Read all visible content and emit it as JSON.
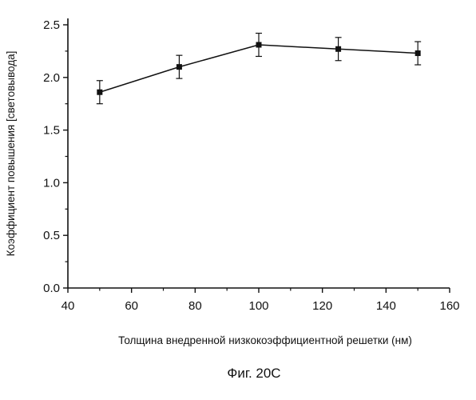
{
  "chart_data": {
    "type": "line",
    "title": "",
    "xlabel": "Толщина внедренной низкокоэффициентной решетки (нм)",
    "ylabel": "Коэффициент повышения [световывода]",
    "xlim": [
      40,
      160
    ],
    "ylim": [
      0.0,
      2.5
    ],
    "xticks": [
      "40",
      "60",
      "80",
      "100",
      "120",
      "140",
      "160"
    ],
    "yticks": [
      "0.0",
      "0.5",
      "1.0",
      "1.5",
      "2.0",
      "2.5"
    ],
    "grid": false,
    "marker": "square",
    "series": [
      {
        "x": [
          50,
          75,
          100,
          125,
          150
        ],
        "y": [
          1.86,
          2.1,
          2.31,
          2.27,
          2.23
        ],
        "error": [
          0.11,
          0.11,
          0.11,
          0.11,
          0.11
        ]
      }
    ]
  },
  "caption": "Фиг. 20С"
}
